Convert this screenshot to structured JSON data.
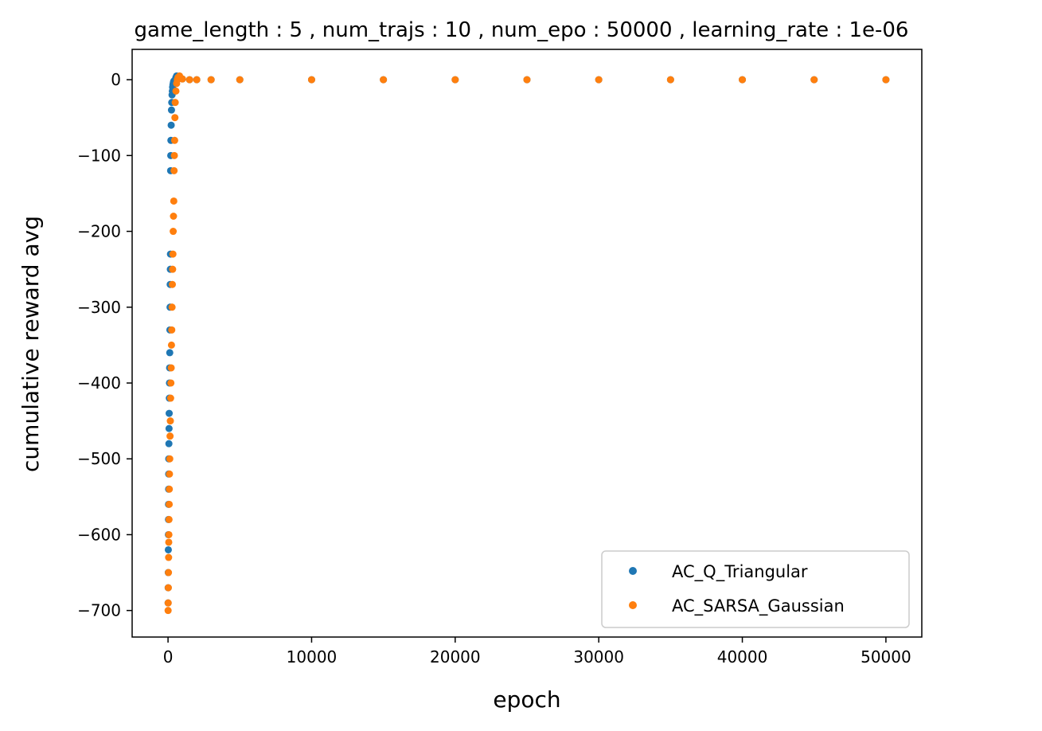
{
  "chart_data": {
    "type": "scatter",
    "title": "game_length : 5 , num_trajs : 10 , num_epo : 50000 , learning_rate : 1e-06",
    "xlabel": "epoch",
    "ylabel": "cumulative reward avg",
    "xlim": [
      -2500,
      52500
    ],
    "ylim": [
      -735,
      40
    ],
    "xticks": [
      0,
      10000,
      20000,
      30000,
      40000,
      50000
    ],
    "xtick_labels": [
      "0",
      "10000",
      "20000",
      "30000",
      "40000",
      "50000"
    ],
    "yticks": [
      0,
      -100,
      -200,
      -300,
      -400,
      -500,
      -600,
      -700
    ],
    "ytick_labels": [
      "0",
      "−100",
      "−200",
      "−300",
      "−400",
      "−500",
      "−600",
      "−700"
    ],
    "grid": false,
    "legend_position": "lower-right",
    "series": [
      {
        "name": "AC_Q_Triangular",
        "color": "#1f77b4",
        "x": [
          5,
          10,
          15,
          20,
          25,
          30,
          35,
          40,
          45,
          50,
          60,
          70,
          80,
          90,
          100,
          110,
          120,
          130,
          140,
          150,
          160,
          170,
          180,
          190,
          200,
          220,
          240,
          260,
          280,
          300,
          320,
          340,
          360,
          380,
          400,
          450,
          500,
          550,
          600,
          700,
          800,
          1000,
          1500,
          2000,
          3000,
          5000,
          10000,
          15000,
          20000,
          25000,
          30000,
          35000,
          40000,
          45000,
          50000
        ],
        "y": [
          -690,
          -670,
          -650,
          -620,
          -600,
          -580,
          -560,
          -540,
          -520,
          -500,
          -480,
          -460,
          -440,
          -420,
          -400,
          -380,
          -360,
          -330,
          -300,
          -270,
          -250,
          -230,
          -120,
          -100,
          -80,
          -60,
          -40,
          -30,
          -20,
          -15,
          -10,
          -7,
          -5,
          -3,
          -2,
          -1,
          0,
          3,
          5,
          4,
          2,
          1,
          0,
          0,
          0,
          0,
          0,
          0,
          0,
          0,
          0,
          0,
          0,
          0,
          0
        ]
      },
      {
        "name": "AC_SARSA_Gaussian",
        "color": "#ff7f0e",
        "x": [
          5,
          10,
          20,
          30,
          40,
          50,
          60,
          70,
          80,
          90,
          100,
          120,
          140,
          160,
          180,
          200,
          220,
          240,
          260,
          280,
          300,
          320,
          340,
          360,
          380,
          400,
          420,
          440,
          460,
          480,
          500,
          550,
          600,
          650,
          700,
          800,
          900,
          1000,
          1500,
          2000,
          3000,
          5000,
          10000,
          15000,
          20000,
          25000,
          30000,
          35000,
          40000,
          45000,
          50000
        ],
        "y": [
          -700,
          -690,
          -670,
          -650,
          -630,
          -610,
          -600,
          -580,
          -560,
          -540,
          -520,
          -500,
          -470,
          -450,
          -420,
          -400,
          -380,
          -350,
          -330,
          -300,
          -270,
          -250,
          -230,
          -200,
          -180,
          -160,
          -120,
          -100,
          -80,
          -50,
          -30,
          -15,
          -5,
          0,
          3,
          5,
          2,
          1,
          0,
          0,
          0,
          0,
          0,
          0,
          0,
          0,
          0,
          0,
          0,
          0,
          0
        ]
      }
    ]
  }
}
